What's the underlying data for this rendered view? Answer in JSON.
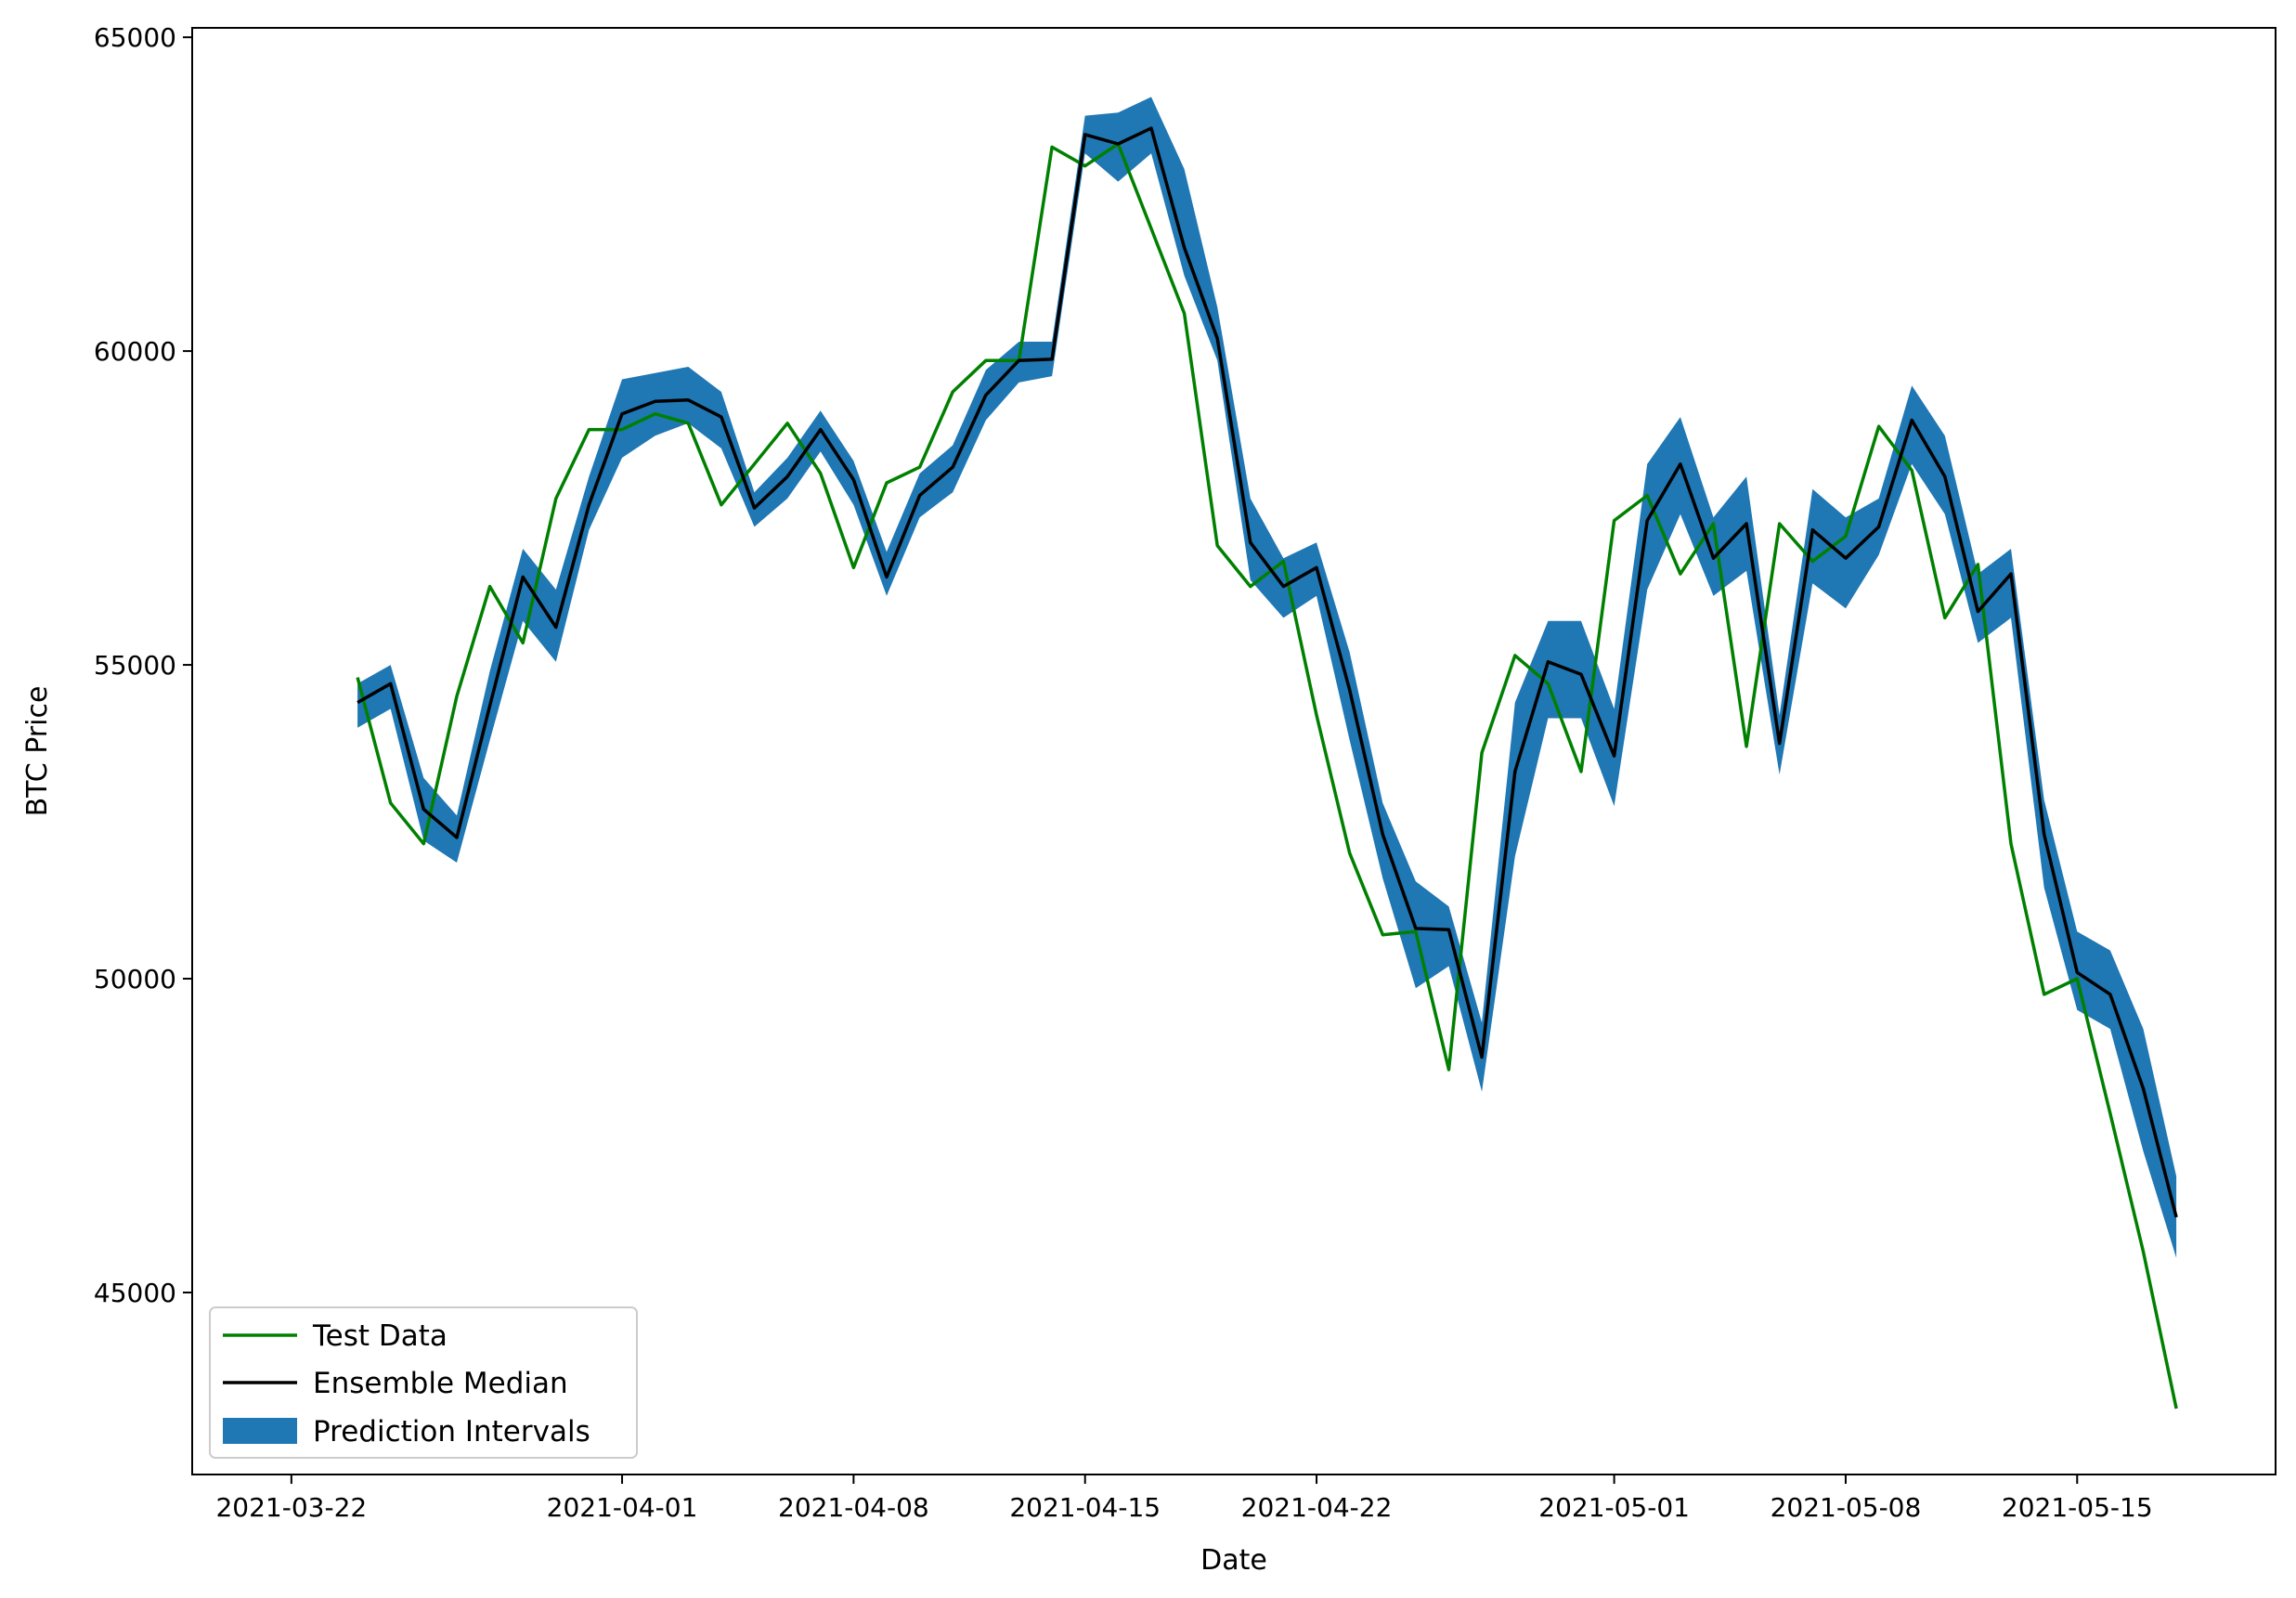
{
  "chart_data": {
    "type": "line",
    "title": "",
    "xlabel": "Date",
    "ylabel": "BTC Price",
    "x_ticks": [
      "2021-03-22",
      "2021-04-01",
      "2021-04-08",
      "2021-04-15",
      "2021-04-22",
      "2021-05-01",
      "2021-05-08",
      "2021-05-15"
    ],
    "y_ticks": [
      45000,
      50000,
      55000,
      60000,
      65000
    ],
    "ylim": [
      42100,
      65150
    ],
    "xlim": [
      "2021-03-19",
      "2021-05-21"
    ],
    "grid": false,
    "legend_position": "lower-left",
    "dates": [
      "2021-03-24",
      "2021-03-25",
      "2021-03-26",
      "2021-03-27",
      "2021-03-28",
      "2021-03-29",
      "2021-03-30",
      "2021-03-31",
      "2021-04-01",
      "2021-04-02",
      "2021-04-03",
      "2021-04-04",
      "2021-04-05",
      "2021-04-06",
      "2021-04-07",
      "2021-04-08",
      "2021-04-09",
      "2021-04-10",
      "2021-04-11",
      "2021-04-12",
      "2021-04-13",
      "2021-04-14",
      "2021-04-15",
      "2021-04-16",
      "2021-04-17",
      "2021-04-18",
      "2021-04-19",
      "2021-04-20",
      "2021-04-21",
      "2021-04-22",
      "2021-04-23",
      "2021-04-24",
      "2021-04-25",
      "2021-04-26",
      "2021-04-27",
      "2021-04-28",
      "2021-04-29",
      "2021-04-30",
      "2021-05-01",
      "2021-05-02",
      "2021-05-03",
      "2021-05-04",
      "2021-05-05",
      "2021-05-06",
      "2021-05-07",
      "2021-05-08",
      "2021-05-09",
      "2021-05-10",
      "2021-05-11",
      "2021-05-12",
      "2021-05-13",
      "2021-05-14",
      "2021-05-15",
      "2021-05-16",
      "2021-05-17",
      "2021-05-18"
    ],
    "series": [
      {
        "name": "Test Data",
        "color": "#008000",
        "values": [
          54800,
          52800,
          52150,
          54500,
          56250,
          55350,
          57650,
          58750,
          58750,
          59000,
          58850,
          57550,
          58200,
          58850,
          58050,
          56550,
          57900,
          58150,
          59350,
          59850,
          59850,
          63250,
          62950,
          63300,
          61950,
          60600,
          56900,
          56250,
          56650,
          54200,
          52000,
          50700,
          50750,
          48550,
          53600,
          55150,
          54700,
          53300,
          57300,
          57700,
          56450,
          57250,
          53700,
          57250,
          56650,
          57050,
          58800,
          58100,
          55750,
          56600,
          52150,
          49750,
          50000,
          47850,
          45650,
          43150
        ]
      },
      {
        "name": "Ensemble Median",
        "color": "#000000",
        "values": [
          54400,
          54700,
          52700,
          52250,
          54350,
          56400,
          55600,
          57550,
          59000,
          59200,
          59220,
          58950,
          57500,
          58000,
          58750,
          57950,
          56400,
          57700,
          58150,
          59300,
          59850,
          59870,
          63450,
          63300,
          63550,
          61650,
          60200,
          56950,
          56250,
          56550,
          54600,
          52300,
          50800,
          50780,
          48750,
          53300,
          55050,
          54850,
          53550,
          57300,
          58200,
          56700,
          57250,
          53750,
          57150,
          56700,
          57200,
          58900,
          58000,
          55850,
          56450,
          52300,
          50100,
          49750,
          48250,
          46200
        ]
      },
      {
        "name": "Prediction Intervals",
        "color": "#1f77b4",
        "lower": [
          54000,
          54300,
          52200,
          51850,
          53800,
          55700,
          55050,
          57150,
          58300,
          58650,
          58850,
          58450,
          57200,
          57650,
          58400,
          57550,
          56100,
          57350,
          57750,
          58900,
          59500,
          59600,
          63150,
          62700,
          63150,
          61200,
          59850,
          56350,
          55750,
          56100,
          53800,
          51600,
          49850,
          50200,
          48200,
          51950,
          54150,
          54150,
          52750,
          56200,
          57400,
          56100,
          56500,
          53250,
          56300,
          55900,
          56750,
          58200,
          57400,
          55350,
          55750,
          51450,
          49500,
          49200,
          47250,
          45550
        ],
        "upper": [
          54700,
          55000,
          53200,
          52600,
          54900,
          56850,
          56200,
          58000,
          59550,
          59650,
          59750,
          59350,
          57750,
          58300,
          59050,
          58250,
          56800,
          58050,
          58500,
          59700,
          60150,
          60150,
          63750,
          63800,
          64050,
          62900,
          60700,
          57650,
          56700,
          56950,
          55200,
          52800,
          51550,
          51150,
          49300,
          54400,
          55700,
          55700,
          54300,
          58200,
          58950,
          57350,
          58000,
          54200,
          57800,
          57350,
          57650,
          59450,
          58650,
          56450,
          56850,
          52850,
          50750,
          50450,
          49200,
          46850
        ]
      }
    ]
  }
}
